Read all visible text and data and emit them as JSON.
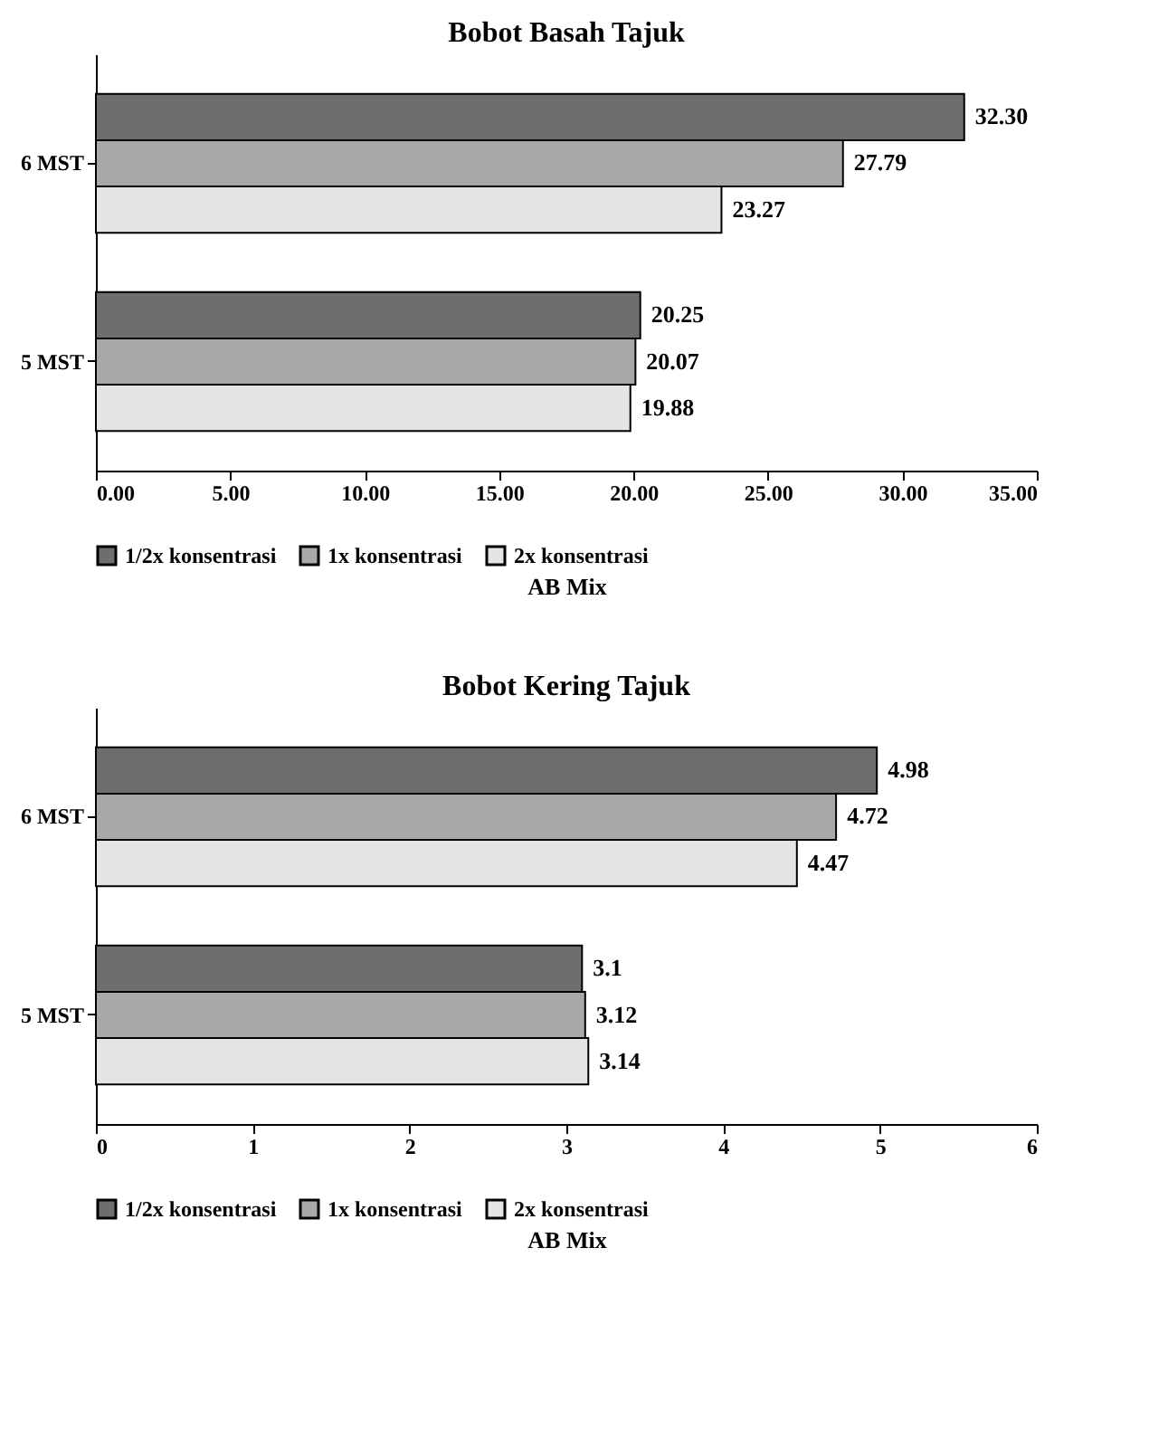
{
  "chart_data": [
    {
      "type": "bar",
      "orientation": "horizontal",
      "title": "Bobot Basah Tajuk",
      "xlabel": "AB Mix",
      "categories": [
        "6 MST",
        "5 MST"
      ],
      "series": [
        {
          "name": "1/2x konsentrasi",
          "color": "#6e6e6e",
          "values": [
            32.3,
            20.25
          ],
          "value_labels": [
            "32.30",
            "20.25"
          ]
        },
        {
          "name": "1x konsentrasi",
          "color": "#a8a8a8",
          "values": [
            27.79,
            20.07
          ],
          "value_labels": [
            "27.79",
            "20.07"
          ]
        },
        {
          "name": "2x konsentrasi",
          "color": "#e4e4e4",
          "values": [
            23.27,
            19.88
          ],
          "value_labels": [
            "23.27",
            "19.88"
          ]
        }
      ],
      "xlim": [
        0,
        35
      ],
      "xticks": [
        {
          "value": 0,
          "label": "0.00"
        },
        {
          "value": 5,
          "label": "5.00"
        },
        {
          "value": 10,
          "label": "10.00"
        },
        {
          "value": 15,
          "label": "15.00"
        },
        {
          "value": 20,
          "label": "20.00"
        },
        {
          "value": 25,
          "label": "25.00"
        },
        {
          "value": 30,
          "label": "30.00"
        },
        {
          "value": 35,
          "label": "35.00"
        }
      ],
      "grid": false,
      "legend": "bottom"
    },
    {
      "type": "bar",
      "orientation": "horizontal",
      "title": "Bobot Kering Tajuk",
      "xlabel": "AB Mix",
      "categories": [
        "6 MST",
        "5 MST"
      ],
      "series": [
        {
          "name": "1/2x konsentrasi",
          "color": "#6e6e6e",
          "values": [
            4.98,
            3.1
          ],
          "value_labels": [
            "4.98",
            "3.1"
          ]
        },
        {
          "name": "1x konsentrasi",
          "color": "#a8a8a8",
          "values": [
            4.72,
            3.12
          ],
          "value_labels": [
            "4.72",
            "3.12"
          ]
        },
        {
          "name": "2x konsentrasi",
          "color": "#e4e4e4",
          "values": [
            4.47,
            3.14
          ],
          "value_labels": [
            "4.47",
            "3.14"
          ]
        }
      ],
      "xlim": [
        0,
        6
      ],
      "xticks": [
        0,
        1,
        2,
        3,
        4,
        5,
        6
      ],
      "grid": false,
      "legend": "bottom"
    }
  ]
}
